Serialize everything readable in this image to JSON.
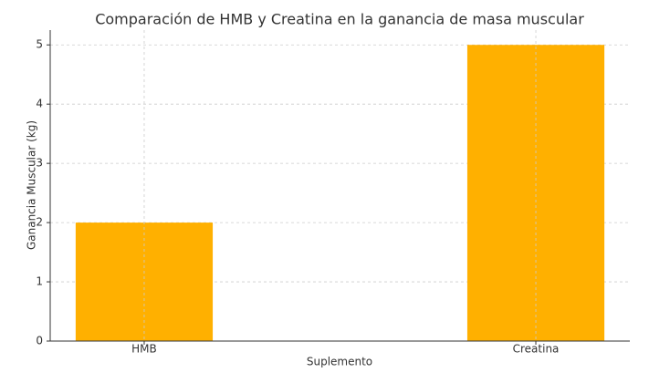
{
  "chart_data": {
    "type": "bar",
    "title": "Comparación de HMB y Creatina en la ganancia de masa muscular",
    "x_label": "Suplemento",
    "y_label": "Ganancia Muscular (kg)",
    "categories": [
      "HMB",
      "Creatina"
    ],
    "values": [
      2,
      5
    ],
    "color": "#ffb000",
    "ylim": [
      0,
      5.25
    ],
    "yticks": [
      0,
      1,
      2,
      3,
      4,
      5
    ],
    "grid": true
  }
}
